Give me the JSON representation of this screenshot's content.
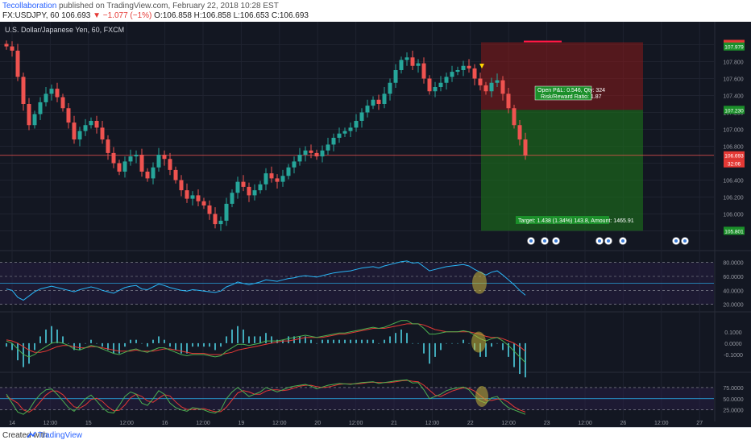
{
  "header": {
    "publisher": "Tecollaboration",
    "published_text": "published on TradingView.com, February 22, 2018 10:28 EST",
    "symbol_line_1": "FX:USDJPY, 60  106.693",
    "change_text": "▼ −1.077 (−1%)",
    "ohlc_text": "O:106.858  H:106.858  L:106.653  C:106.693",
    "instrument_title": "U.S. Dollar/Japanese Yen, 60, FXCM"
  },
  "footer": {
    "created_with": "Created with",
    "brand": "TradingView"
  },
  "colors": {
    "background": "#131722",
    "up_candle": "#26a69a",
    "down_candle": "#ef5350",
    "rsi_line": "#29b6f6",
    "macd_line": "#4caf50",
    "signal_line": "#e53935",
    "stop_zone": "#8b1a1a",
    "target_zone": "#1b6b1b",
    "highlight": "#c6b63a"
  },
  "position_box": {
    "open_label": "Open P&L: 0.546, Qty: 324",
    "rr_label": "Risk/Reward Ratio: 1.87",
    "target_label": "Target: 1.438 (1.34%) 143.8, Amount: 1465.91"
  },
  "chart_data": [
    {
      "type": "candlestick",
      "title": "U.S. Dollar/Japanese Yen, 60, FXCM",
      "x_ticks": [
        "14",
        "12:00",
        "15",
        "12:00",
        "16",
        "12:00",
        "19",
        "12:00",
        "20",
        "12:00",
        "21",
        "12:00",
        "22",
        "12:00",
        "23",
        "12:00",
        "26",
        "12:00",
        "27"
      ],
      "y_ticks": [
        "108.000",
        "107.800",
        "107.600",
        "107.400",
        "107.200",
        "107.000",
        "106.800",
        "106.600",
        "106.400",
        "106.200",
        "106.000",
        "105.800"
      ],
      "ylim": [
        105.7,
        108.1
      ],
      "price_markers": {
        "stop": "108.010",
        "entry": "107.979",
        "entry2": "107.230",
        "last": "106.693",
        "last_time": "32:06",
        "target": "105.801"
      },
      "close": [
        107.98,
        107.93,
        107.62,
        107.3,
        107.05,
        107.18,
        107.32,
        107.42,
        107.48,
        107.38,
        107.25,
        107.08,
        106.88,
        106.98,
        107.05,
        107.1,
        107.02,
        106.88,
        106.72,
        106.6,
        106.5,
        106.62,
        106.68,
        106.7,
        106.5,
        106.42,
        106.55,
        106.7,
        106.65,
        106.52,
        106.4,
        106.28,
        106.18,
        106.22,
        106.15,
        106.1,
        106.0,
        105.88,
        105.92,
        106.12,
        106.25,
        106.38,
        106.32,
        106.22,
        106.28,
        106.35,
        106.48,
        106.42,
        106.38,
        106.45,
        106.55,
        106.62,
        106.7,
        106.75,
        106.72,
        106.68,
        106.75,
        106.82,
        106.9,
        106.95,
        106.98,
        107.02,
        107.1,
        107.2,
        107.28,
        107.35,
        107.3,
        107.42,
        107.55,
        107.7,
        107.82,
        107.85,
        107.75,
        107.78,
        107.6,
        107.45,
        107.5,
        107.55,
        107.62,
        107.68,
        107.7,
        107.75,
        107.72,
        107.6,
        107.52,
        107.45,
        107.55,
        107.58,
        107.42,
        107.25,
        107.05,
        106.88,
        106.69
      ],
      "rsi": {
        "values": [
          42,
          40,
          30,
          26,
          32,
          38,
          42,
          44,
          46,
          44,
          42,
          40,
          38,
          41,
          43,
          45,
          43,
          40,
          38,
          36,
          40,
          44,
          46,
          47,
          42,
          41,
          45,
          49,
          47,
          44,
          42,
          40,
          39,
          41,
          40,
          39,
          38,
          37,
          39,
          45,
          48,
          52,
          50,
          48,
          50,
          52,
          55,
          54,
          53,
          55,
          57,
          58,
          60,
          61,
          60,
          59,
          61,
          63,
          65,
          66,
          67,
          68,
          70,
          72,
          73,
          74,
          72,
          75,
          77,
          79,
          81,
          82,
          79,
          80,
          74,
          68,
          70,
          72,
          74,
          75,
          76,
          77,
          75,
          70,
          66,
          62,
          66,
          68,
          62,
          55,
          48,
          40,
          33
        ],
        "ylim": [
          15,
          90
        ],
        "levels": [
          80,
          60,
          40,
          20
        ],
        "midline": 50
      },
      "macd": {
        "macd": [
          0.02,
          0.0,
          -0.05,
          -0.1,
          -0.12,
          -0.1,
          -0.06,
          -0.03,
          0.0,
          0.01,
          0.0,
          -0.02,
          -0.05,
          -0.06,
          -0.04,
          -0.02,
          -0.03,
          -0.05,
          -0.07,
          -0.09,
          -0.1,
          -0.08,
          -0.06,
          -0.05,
          -0.07,
          -0.08,
          -0.06,
          -0.04,
          -0.04,
          -0.06,
          -0.08,
          -0.1,
          -0.11,
          -0.1,
          -0.1,
          -0.1,
          -0.11,
          -0.12,
          -0.11,
          -0.07,
          -0.04,
          -0.01,
          -0.01,
          -0.02,
          -0.01,
          0.0,
          0.02,
          0.02,
          0.02,
          0.03,
          0.04,
          0.05,
          0.06,
          0.07,
          0.06,
          0.05,
          0.06,
          0.07,
          0.08,
          0.09,
          0.09,
          0.1,
          0.11,
          0.12,
          0.13,
          0.14,
          0.13,
          0.14,
          0.16,
          0.18,
          0.2,
          0.2,
          0.17,
          0.17,
          0.13,
          0.08,
          0.08,
          0.09,
          0.1,
          0.1,
          0.1,
          0.11,
          0.1,
          0.07,
          0.04,
          0.02,
          0.04,
          0.05,
          0.02,
          -0.02,
          -0.07,
          -0.12,
          -0.17
        ],
        "signal": [
          0.03,
          0.02,
          0.0,
          -0.03,
          -0.06,
          -0.08,
          -0.08,
          -0.07,
          -0.05,
          -0.03,
          -0.02,
          -0.02,
          -0.03,
          -0.04,
          -0.04,
          -0.03,
          -0.03,
          -0.04,
          -0.05,
          -0.06,
          -0.07,
          -0.07,
          -0.07,
          -0.06,
          -0.07,
          -0.07,
          -0.07,
          -0.06,
          -0.05,
          -0.05,
          -0.06,
          -0.07,
          -0.08,
          -0.09,
          -0.09,
          -0.09,
          -0.1,
          -0.1,
          -0.1,
          -0.09,
          -0.08,
          -0.06,
          -0.05,
          -0.04,
          -0.03,
          -0.02,
          -0.01,
          0.0,
          0.01,
          0.02,
          0.02,
          0.03,
          0.04,
          0.05,
          0.05,
          0.05,
          0.05,
          0.06,
          0.07,
          0.08,
          0.08,
          0.09,
          0.1,
          0.11,
          0.12,
          0.13,
          0.13,
          0.13,
          0.14,
          0.15,
          0.16,
          0.17,
          0.17,
          0.17,
          0.16,
          0.14,
          0.12,
          0.11,
          0.1,
          0.1,
          0.1,
          0.1,
          0.1,
          0.09,
          0.08,
          0.06,
          0.05,
          0.05,
          0.04,
          0.02,
          0.0,
          -0.03,
          -0.07
        ],
        "ylim": [
          -0.22,
          0.24
        ],
        "ticks": [
          "0.1000",
          "0.0000",
          "-0.1000"
        ]
      },
      "stoch": {
        "k": [
          60,
          40,
          20,
          15,
          25,
          45,
          60,
          70,
          72,
          60,
          45,
          30,
          22,
          35,
          50,
          58,
          45,
          30,
          20,
          18,
          35,
          55,
          65,
          60,
          40,
          35,
          50,
          68,
          60,
          40,
          30,
          25,
          22,
          30,
          28,
          25,
          20,
          18,
          25,
          50,
          65,
          75,
          65,
          55,
          60,
          65,
          75,
          70,
          65,
          70,
          75,
          78,
          80,
          82,
          78,
          72,
          76,
          80,
          82,
          84,
          83,
          82,
          84,
          86,
          87,
          88,
          84,
          86,
          88,
          90,
          91,
          92,
          85,
          86,
          70,
          50,
          55,
          60,
          68,
          72,
          74,
          76,
          70,
          55,
          45,
          40,
          52,
          55,
          40,
          30,
          25,
          20,
          15
        ],
        "d": [
          55,
          48,
          40,
          25,
          20,
          28,
          43,
          58,
          67,
          67,
          59,
          45,
          32,
          29,
          36,
          48,
          51,
          44,
          32,
          23,
          24,
          36,
          52,
          60,
          55,
          45,
          42,
          51,
          59,
          56,
          43,
          32,
          26,
          26,
          27,
          28,
          24,
          21,
          21,
          31,
          47,
          63,
          68,
          65,
          60,
          60,
          67,
          70,
          70,
          68,
          70,
          74,
          78,
          80,
          80,
          77,
          75,
          76,
          79,
          82,
          83,
          83,
          83,
          84,
          86,
          87,
          86,
          86,
          86,
          88,
          90,
          91,
          89,
          88,
          80,
          69,
          58,
          55,
          61,
          67,
          71,
          74,
          73,
          67,
          57,
          47,
          46,
          49,
          49,
          42,
          32,
          25,
          20
        ],
        "ylim": [
          10,
          100
        ],
        "levels": [
          75,
          25
        ],
        "midline": 50,
        "ticks": [
          "75.0000",
          "50.0000",
          "25.0000"
        ]
      }
    }
  ]
}
